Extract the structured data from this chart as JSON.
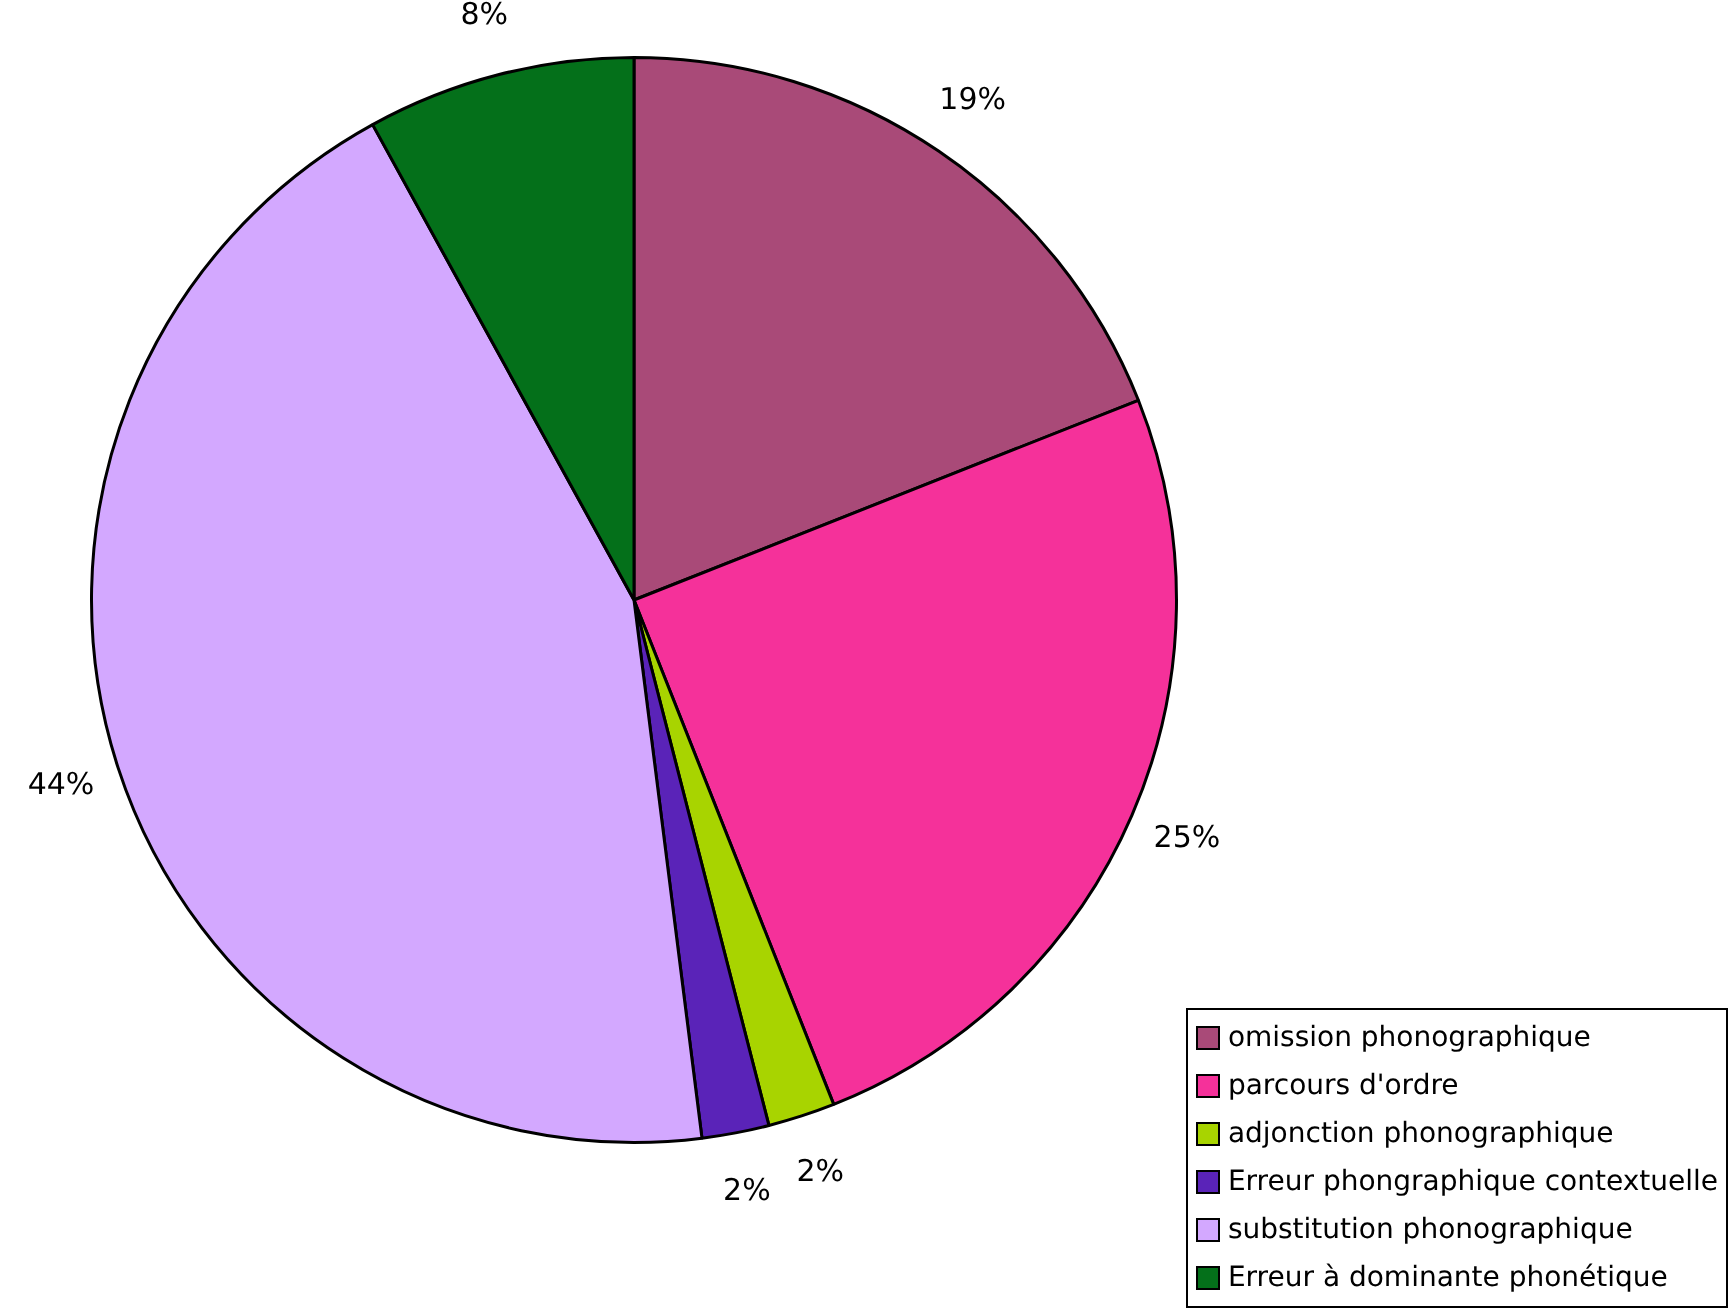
{
  "chart_data": {
    "type": "pie",
    "categories": [
      "omission phonographique",
      "parcours d'ordre",
      "adjonction phonographique",
      "Erreur phongraphique contextuelle",
      "substitution phonographique",
      "Erreur à dominante phonétique"
    ],
    "values": [
      19,
      25,
      2,
      2,
      44,
      8
    ],
    "colors": [
      "#a94a78",
      "#f5319a",
      "#a8d400",
      "#5a23b8",
      "#d3a8ff",
      "#04701a"
    ],
    "value_labels": [
      "19%",
      "25%",
      "2%",
      "2%",
      "44%",
      "8%"
    ],
    "legend": "bottom right"
  }
}
